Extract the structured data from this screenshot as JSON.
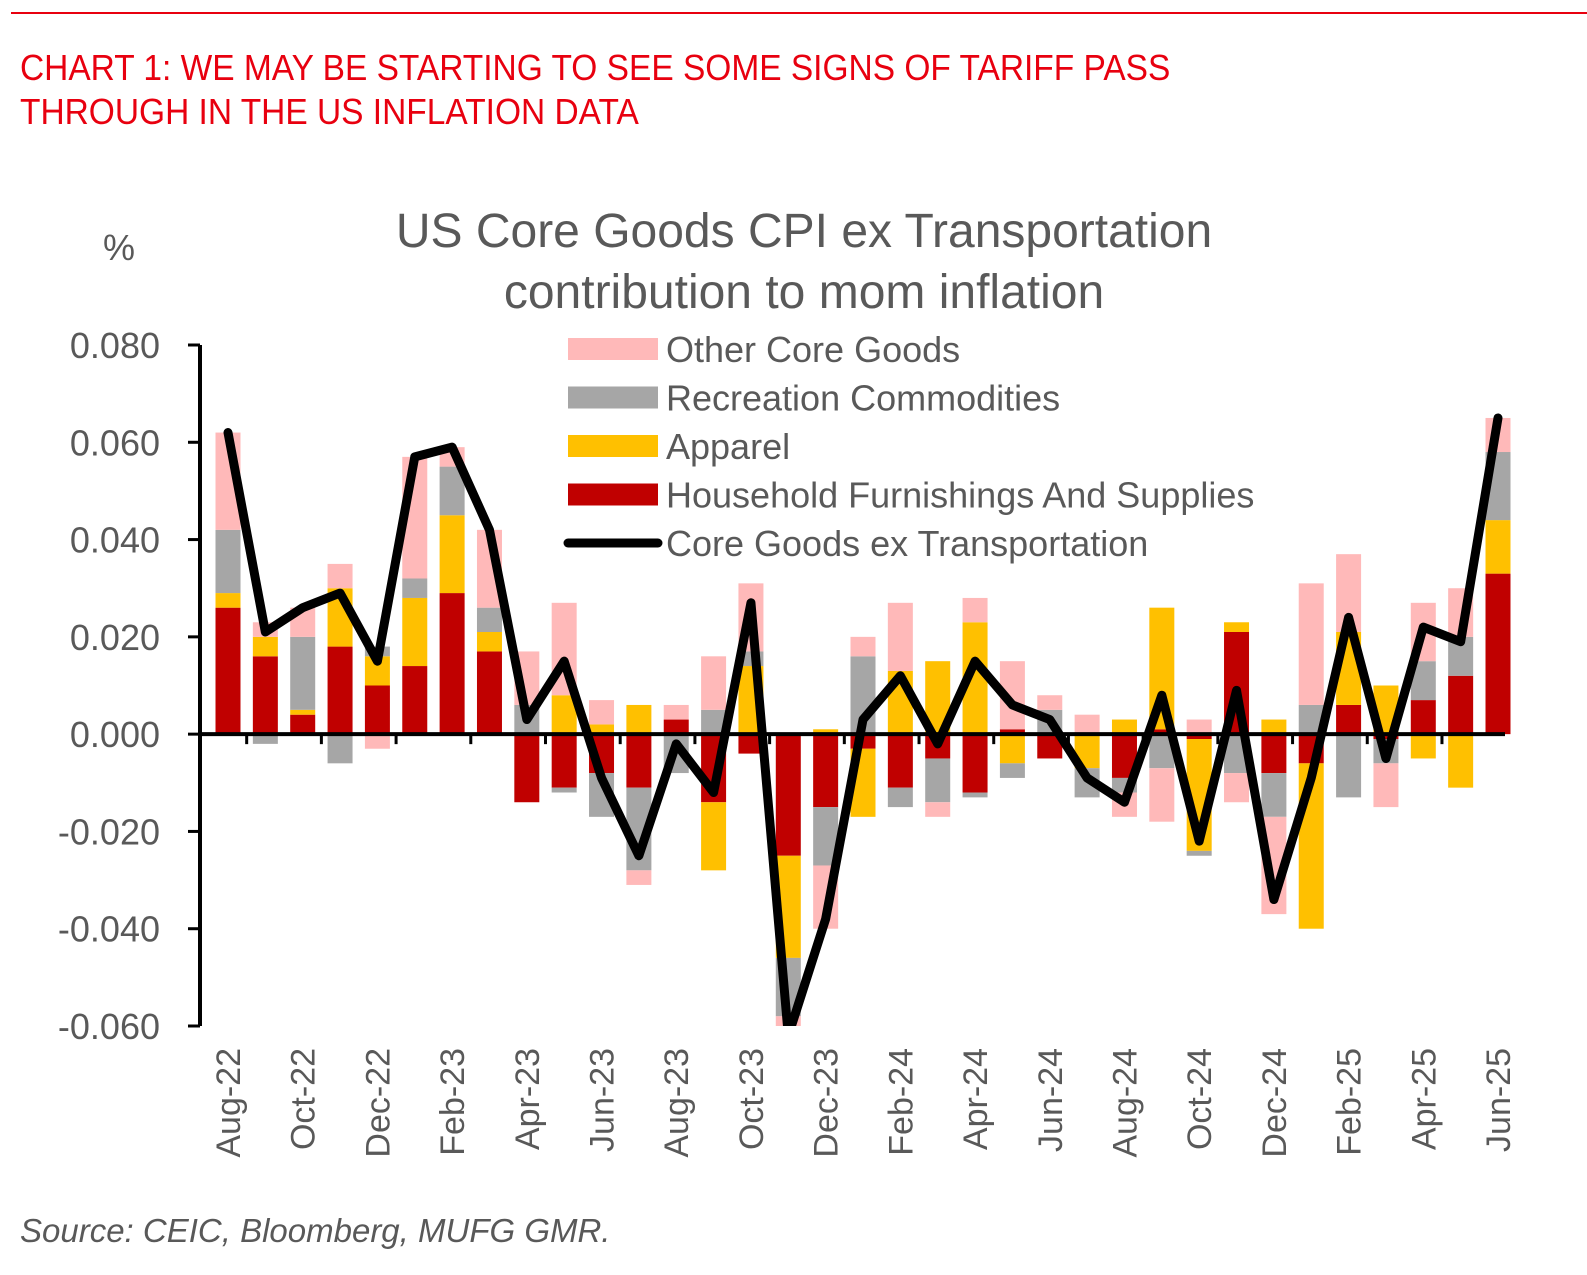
{
  "header": {
    "headline_line1": "CHART 1: WE MAY BE STARTING TO SEE SOME SIGNS OF TARIFF PASS",
    "headline_line2": "THROUGH IN THE US INFLATION DATA",
    "accent_color": "#e8000f"
  },
  "footer": {
    "source": "Source: CEIC, Bloomberg, MUFG GMR."
  },
  "chart_data": {
    "type": "bar",
    "stacked": true,
    "title_line1": "US Core Goods CPI ex Transportation",
    "title_line2": "contribution to mom inflation",
    "ylabel": "%",
    "xlabel": "",
    "ylim": [
      -0.06,
      0.08
    ],
    "yticks": [
      "0.080",
      "0.060",
      "0.040",
      "0.020",
      "0.000",
      "-0.020",
      "-0.040",
      "-0.060"
    ],
    "ytick_values": [
      0.08,
      0.06,
      0.04,
      0.02,
      0.0,
      -0.02,
      -0.04,
      -0.06
    ],
    "grid": false,
    "legend_position": "top-right",
    "categories": [
      "Aug-22",
      "Sep-22",
      "Oct-22",
      "Nov-22",
      "Dec-22",
      "Jan-23",
      "Feb-23",
      "Mar-23",
      "Apr-23",
      "May-23",
      "Jun-23",
      "Jul-23",
      "Aug-23",
      "Sep-23",
      "Oct-23",
      "Nov-23",
      "Dec-23",
      "Jan-24",
      "Feb-24",
      "Mar-24",
      "Apr-24",
      "May-24",
      "Jun-24",
      "Jul-24",
      "Aug-24",
      "Sep-24",
      "Oct-24",
      "Nov-24",
      "Dec-24",
      "Jan-25",
      "Feb-25",
      "Mar-25",
      "Apr-25",
      "May-25",
      "Jun-25"
    ],
    "xtick_labels": [
      "Aug-22",
      "Oct-22",
      "Dec-22",
      "Feb-23",
      "Apr-23",
      "Jun-23",
      "Aug-23",
      "Oct-23",
      "Dec-23",
      "Feb-24",
      "Apr-24",
      "Jun-24",
      "Aug-24",
      "Oct-24",
      "Dec-24",
      "Feb-25",
      "Apr-25",
      "Jun-25"
    ],
    "series": [
      {
        "name": "Household Furnishings And Supplies",
        "kind": "bar",
        "color": "#c00000",
        "values": [
          0.026,
          0.016,
          0.004,
          0.018,
          0.01,
          0.014,
          0.029,
          0.017,
          -0.014,
          -0.011,
          -0.008,
          -0.011,
          0.003,
          -0.014,
          -0.004,
          -0.025,
          -0.015,
          -0.003,
          -0.011,
          -0.005,
          -0.012,
          0.001,
          -0.005,
          0.0,
          -0.009,
          0.001,
          -0.001,
          0.021,
          -0.008,
          -0.006,
          0.006,
          -0.001,
          0.007,
          0.012,
          0.033
        ]
      },
      {
        "name": "Apparel",
        "kind": "bar",
        "color": "#ffc000",
        "values": [
          0.003,
          0.004,
          0.001,
          0.012,
          0.006,
          0.014,
          0.016,
          0.004,
          0.0,
          0.008,
          0.002,
          0.006,
          0.0,
          -0.014,
          0.014,
          -0.021,
          0.001,
          -0.014,
          0.013,
          0.015,
          0.023,
          -0.006,
          0.0,
          -0.007,
          0.003,
          0.025,
          -0.023,
          0.002,
          0.003,
          -0.034,
          0.015,
          0.01,
          -0.005,
          -0.011,
          0.011
        ]
      },
      {
        "name": "Recreation Commodities",
        "kind": "bar",
        "color": "#a6a6a6",
        "values": [
          0.013,
          -0.002,
          0.015,
          -0.006,
          0.002,
          0.004,
          0.01,
          0.005,
          0.006,
          -0.001,
          -0.009,
          -0.017,
          -0.008,
          0.005,
          0.003,
          -0.012,
          -0.012,
          0.016,
          -0.004,
          -0.009,
          -0.001,
          -0.003,
          0.005,
          -0.006,
          -0.003,
          -0.007,
          -0.001,
          -0.008,
          -0.009,
          0.006,
          -0.013,
          -0.005,
          0.008,
          0.008,
          0.014
        ]
      },
      {
        "name": "Other Core Goods",
        "kind": "bar",
        "color": "#ffb9b9",
        "values": [
          0.02,
          0.003,
          0.006,
          0.005,
          -0.003,
          0.025,
          0.004,
          0.016,
          0.011,
          0.019,
          0.005,
          -0.003,
          0.003,
          0.011,
          0.014,
          -0.004,
          -0.013,
          0.004,
          0.014,
          -0.003,
          0.005,
          0.014,
          0.003,
          0.004,
          -0.005,
          -0.011,
          0.003,
          -0.006,
          -0.02,
          0.025,
          0.016,
          -0.009,
          0.012,
          0.01,
          0.007
        ]
      },
      {
        "name": "Core Goods ex Transportation",
        "kind": "line",
        "color": "#000000",
        "values": [
          0.062,
          0.021,
          0.026,
          0.029,
          0.015,
          0.057,
          0.059,
          0.042,
          0.003,
          0.015,
          -0.009,
          -0.025,
          -0.002,
          -0.012,
          0.027,
          -0.062,
          -0.038,
          0.003,
          0.012,
          -0.002,
          0.015,
          0.006,
          0.003,
          -0.009,
          -0.014,
          0.008,
          -0.022,
          0.009,
          -0.034,
          -0.009,
          0.024,
          -0.005,
          0.022,
          0.019,
          0.065
        ]
      }
    ],
    "legend_order": [
      "Other Core Goods",
      "Recreation Commodities",
      "Apparel",
      "Household Furnishings And Supplies",
      "Core Goods ex Transportation"
    ]
  }
}
